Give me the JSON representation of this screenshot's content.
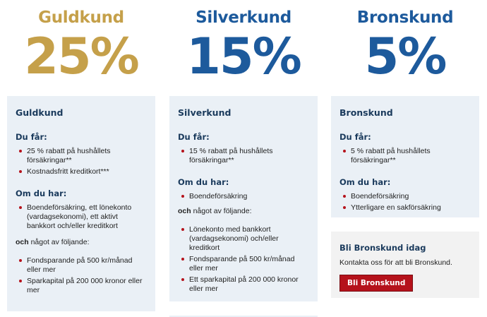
{
  "gold": {
    "name": "Guldkund",
    "percent": "25%",
    "card_title": "Guldkund",
    "you_get_heading": "Du får:",
    "you_get_items": [
      "25 % rabatt på hushållets försäkringar**",
      "Kostnadsfritt kreditkort***"
    ],
    "if_you_have_heading": "Om du har:",
    "if_you_have_items": [
      "Boendeförsäkring, ett lönekonto (vardagsekonomi), ett aktivt bankkort och/eller kreditkort"
    ],
    "and_one_of_bold": "och",
    "and_one_of_rest": " något av följande:",
    "following_items": [
      "Fondsparande på 500 kr/månad eller mer",
      "Sparkapital på 200 000 kronor eller mer"
    ]
  },
  "silver": {
    "name": "Silverkund",
    "percent": "15%",
    "card_title": "Silverkund",
    "you_get_heading": "Du får:",
    "you_get_items": [
      "15 % rabatt på hushållets försäkringar**"
    ],
    "if_you_have_heading": "Om du har:",
    "if_you_have_items": [
      "Boendeförsäkring"
    ],
    "and_one_of_bold": "och",
    "and_one_of_rest": " något av följande:",
    "following_items": [
      "Lönekonto med bankkort (vardagsekonomi) och/eller kreditkort",
      "Fondsparande på 500 kr/månad eller mer",
      "Ett sparkapital på 200 000 kronor eller mer"
    ]
  },
  "bronze": {
    "name": "Bronskund",
    "percent": "5%",
    "card_title": "Bronskund",
    "you_get_heading": "Du får:",
    "you_get_items": [
      "5 % rabatt på hushållets försäkringar**"
    ],
    "if_you_have_heading": "Om du har:",
    "if_you_have_items": [
      "Boendeförsäkring",
      "Ytterligare en sakförsäkring"
    ]
  },
  "cta": {
    "title": "Bli Bronskund idag",
    "text": "Kontakta oss för att bli Bronskund.",
    "button_label": "Bli Bronskund"
  },
  "colors": {
    "gold": "#c5a04a",
    "blue": "#1d5a9c",
    "card_bg": "#eaf0f6",
    "bullet": "#b5121b",
    "button": "#b5121b"
  }
}
